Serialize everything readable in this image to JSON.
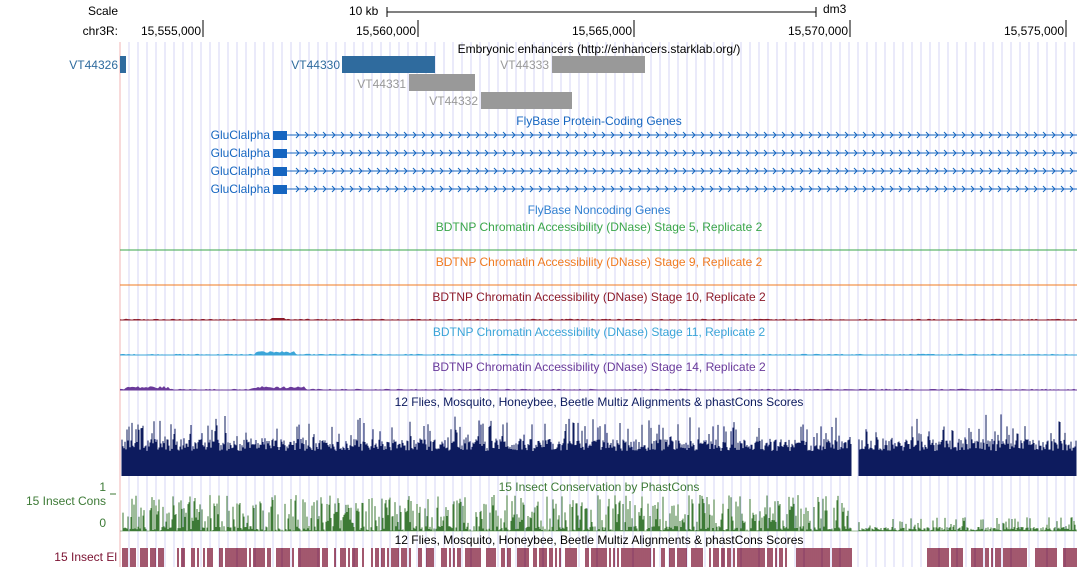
{
  "header": {
    "scale_label": "Scale",
    "scale_bar_label": "10 kb",
    "assembly": "dm3",
    "chrom_label": "chr3R:",
    "ticks": [
      "15,555,000",
      "15,560,000",
      "15,565,000",
      "15,570,000",
      "15,575,000"
    ]
  },
  "enhancers": {
    "title": "Embryonic enhancers (http://enhancers.starklab.org/)",
    "items": [
      {
        "name": "VT44326",
        "color": "#2f6b9e"
      },
      {
        "name": "VT44330",
        "color": "#2f6b9e"
      },
      {
        "name": "VT44333",
        "color": "#999999"
      },
      {
        "name": "VT44331",
        "color": "#999999"
      },
      {
        "name": "VT44332",
        "color": "#999999"
      }
    ]
  },
  "genes": {
    "title": "FlyBase Protein-Coding Genes",
    "names": [
      "GluClalpha",
      "GluClalpha",
      "GluClalpha",
      "GluClalpha"
    ],
    "color": "#1565c0"
  },
  "noncoding": {
    "title": "FlyBase Noncoding Genes",
    "color": "#2f7fd0"
  },
  "dnase": [
    {
      "title": "BDTNP Chromatin Accessibility (DNase) Stage 5, Replicate 2",
      "color": "#3aa64a"
    },
    {
      "title": "BDTNP Chromatin Accessibility (DNase) Stage 9, Replicate 2",
      "color": "#f07b21"
    },
    {
      "title": "BDTNP Chromatin Accessibility (DNase) Stage 10, Replicate 2",
      "color": "#8c1a2a"
    },
    {
      "title": "BDTNP Chromatin Accessibility (DNase) Stage 11, Replicate 2",
      "color": "#3ba5d8"
    },
    {
      "title": "BDTNP Chromatin Accessibility (DNase) Stage 14, Replicate 2",
      "color": "#6a3a9a"
    }
  ],
  "multiz": {
    "title": "12 Flies, Mosquito, Honeybee, Beetle Multiz Alignments & phastCons Scores",
    "color": "#0d1b5e"
  },
  "cons": {
    "side_label": "15 Insect Cons",
    "title": "15 Insect Conservation by PhastCons",
    "ymax_label": "1",
    "ymin_label": "0",
    "color": "#3d7a36"
  },
  "elements": {
    "side_label": "15 Insect El",
    "title": "12 Flies, Mosquito, Honeybee, Beetle Multiz Alignments & phastCons Scores",
    "color": "#7a1030"
  }
}
